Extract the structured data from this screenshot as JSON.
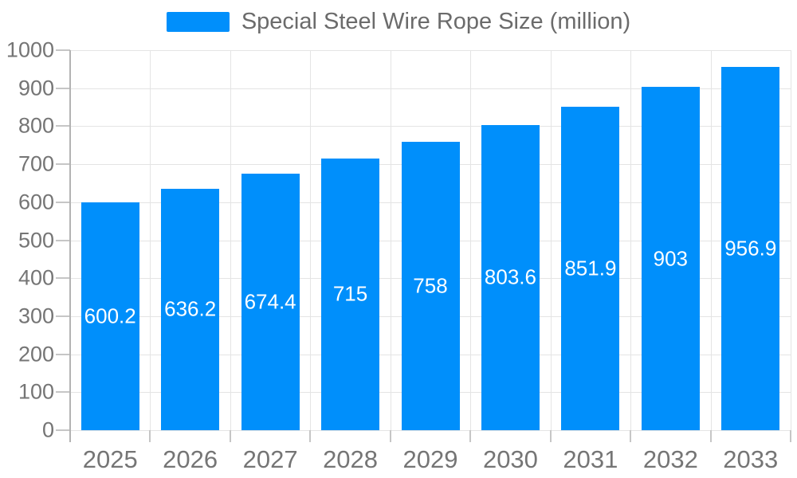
{
  "legend": {
    "label": "Special Steel Wire Rope Size (million)",
    "swatch_color": "#008FFB"
  },
  "colors": {
    "bar": "#008FFB",
    "value_label": "#ffffff",
    "axis_label": "#757575",
    "legend_text": "#6b6b6b",
    "gridline": "#e4e4e4",
    "axis_line": "#b3b3b3",
    "tick": "#c6c6c6",
    "background": "#ffffff"
  },
  "chart_data": {
    "type": "bar",
    "title": "Special Steel Wire Rope Size (million)",
    "categories": [
      "2025",
      "2026",
      "2027",
      "2028",
      "2029",
      "2030",
      "2031",
      "2032",
      "2033"
    ],
    "series": [
      {
        "name": "Special Steel Wire Rope Size (million)",
        "color": "#008FFB",
        "values": [
          600.2,
          636.2,
          674.4,
          715,
          758,
          803.6,
          851.9,
          903,
          956.9
        ]
      }
    ],
    "value_labels": [
      "600.2",
      "636.2",
      "674.4",
      "715",
      "758",
      "803.6",
      "851.9",
      "903",
      "956.9"
    ],
    "xlabel": "",
    "ylabel": "",
    "ylim": [
      0,
      1000
    ],
    "yticks": [
      0,
      100,
      200,
      300,
      400,
      500,
      600,
      700,
      800,
      900,
      1000
    ],
    "grid": "horizontal-and-vertical",
    "legend_position": "top",
    "value_label_position": "inside-center"
  }
}
